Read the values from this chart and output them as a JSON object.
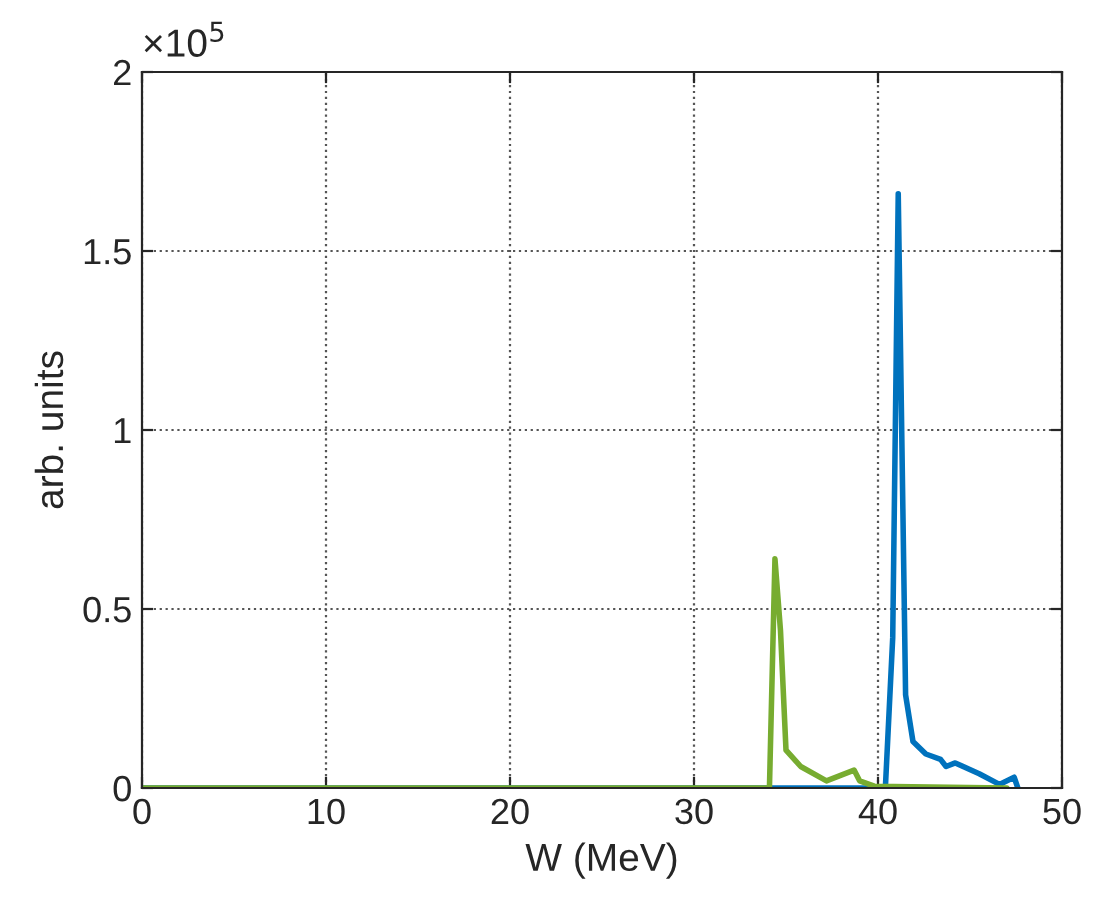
{
  "chart_data": {
    "type": "line",
    "xlabel": "W (MeV)",
    "ylabel": "arb. units",
    "annotations": [
      "×10$^{5}$"
    ],
    "xlim": [
      0,
      50
    ],
    "xticks": [
      0,
      10,
      20,
      30,
      40,
      50
    ],
    "ylim": [
      0,
      2
    ],
    "yticks": [
      0,
      0.5,
      1,
      1.5,
      2
    ],
    "grid": true,
    "series": [
      {
        "color": "#0072bd",
        "x": [
          0,
          40.4,
          40.8,
          41.1,
          41.5,
          41.9,
          42.6,
          43.4,
          43.7,
          44.2,
          45.5,
          46.6,
          47.4,
          47.6
        ],
        "values": [
          0,
          0,
          0.42,
          1.66,
          0.26,
          0.13,
          0.095,
          0.08,
          0.06,
          0.07,
          0.04,
          0.01,
          0.03,
          0
        ]
      },
      {
        "color": "#77ac30",
        "x": [
          0,
          34.1,
          34.4,
          34.7,
          35.0,
          35.8,
          37.2,
          38.7,
          39.0,
          39.8,
          47.0
        ],
        "values": [
          0,
          0,
          0.64,
          0.44,
          0.106,
          0.06,
          0.02,
          0.05,
          0.02,
          0.005,
          0
        ]
      }
    ]
  }
}
